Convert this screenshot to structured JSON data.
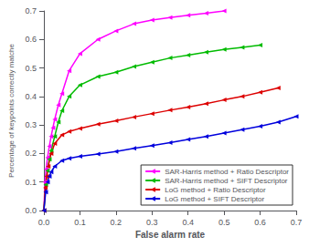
{
  "chart_data": {
    "type": "line",
    "xlabel": "False alarm rate",
    "ylabel": "Percentage of keypoints correctly matche",
    "xlim": [
      0,
      0.7
    ],
    "ylim": [
      0,
      0.7
    ],
    "xticks": [
      {
        "value": 0.0,
        "label": "0.0"
      },
      0.1,
      0.2,
      0.3,
      0.4,
      0.5,
      0.6,
      0.7
    ],
    "yticks": [
      {
        "value": 0.0,
        "label": "0.0"
      },
      0.1,
      0.2,
      0.3,
      0.4,
      0.5,
      0.6,
      0.7
    ],
    "grid": false,
    "legend": "lower right",
    "marker": "triangle_left",
    "series": [
      {
        "name": "SAR-Harris method + Ratio Descriptor",
        "color": "#ff00ff",
        "x": [
          0.0,
          0.003,
          0.006,
          0.01,
          0.015,
          0.02,
          0.025,
          0.03,
          0.04,
          0.05,
          0.07,
          0.1,
          0.15,
          0.2,
          0.25,
          0.3,
          0.35,
          0.4,
          0.45,
          0.5
        ],
        "values": [
          0.0,
          0.1,
          0.145,
          0.185,
          0.225,
          0.26,
          0.29,
          0.32,
          0.37,
          0.41,
          0.49,
          0.55,
          0.6,
          0.63,
          0.655,
          0.668,
          0.677,
          0.685,
          0.692,
          0.7
        ]
      },
      {
        "name": "SAR-Harris method + SIFT Descriptor",
        "color": "#00bb00",
        "x": [
          0.0,
          0.005,
          0.01,
          0.015,
          0.02,
          0.03,
          0.04,
          0.05,
          0.07,
          0.1,
          0.15,
          0.2,
          0.25,
          0.3,
          0.35,
          0.4,
          0.45,
          0.5,
          0.55,
          0.6
        ],
        "values": [
          0.0,
          0.09,
          0.14,
          0.18,
          0.21,
          0.26,
          0.31,
          0.35,
          0.4,
          0.44,
          0.47,
          0.485,
          0.505,
          0.52,
          0.535,
          0.545,
          0.555,
          0.565,
          0.572,
          0.58
        ]
      },
      {
        "name": "LoG method + Ratio Descriptor",
        "color": "#dd0000",
        "x": [
          0.0,
          0.004,
          0.008,
          0.012,
          0.02,
          0.03,
          0.05,
          0.07,
          0.1,
          0.15,
          0.2,
          0.25,
          0.3,
          0.35,
          0.4,
          0.45,
          0.5,
          0.55,
          0.6,
          0.65
        ],
        "values": [
          0.0,
          0.08,
          0.12,
          0.155,
          0.2,
          0.235,
          0.265,
          0.277,
          0.288,
          0.303,
          0.315,
          0.328,
          0.34,
          0.352,
          0.363,
          0.375,
          0.388,
          0.4,
          0.415,
          0.43
        ]
      },
      {
        "name": "LoG method + SIFT Descriptor",
        "color": "#0000dd",
        "x": [
          0.0,
          0.005,
          0.01,
          0.015,
          0.02,
          0.03,
          0.05,
          0.07,
          0.1,
          0.15,
          0.2,
          0.25,
          0.3,
          0.35,
          0.4,
          0.45,
          0.5,
          0.55,
          0.6,
          0.65,
          0.7
        ],
        "values": [
          0.0,
          0.065,
          0.1,
          0.12,
          0.135,
          0.155,
          0.175,
          0.183,
          0.19,
          0.198,
          0.207,
          0.218,
          0.228,
          0.238,
          0.249,
          0.26,
          0.272,
          0.284,
          0.296,
          0.31,
          0.33
        ]
      }
    ]
  }
}
